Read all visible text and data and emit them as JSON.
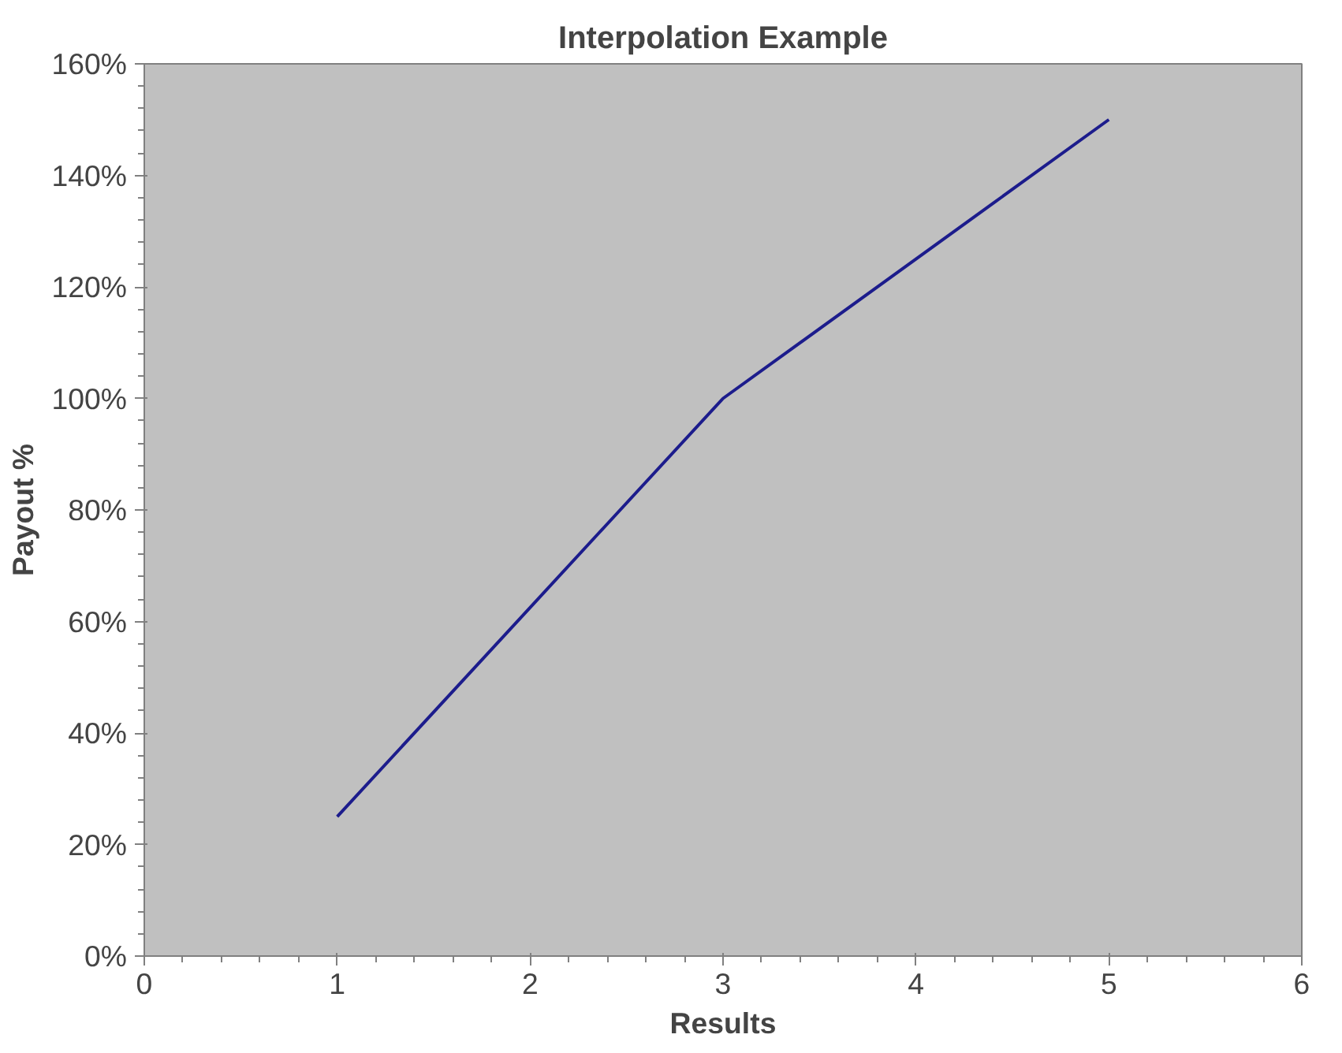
{
  "chart_data": {
    "type": "line",
    "title": "Interpolation Example",
    "xlabel": "Results",
    "ylabel": "Payout %",
    "x": [
      1,
      3,
      5
    ],
    "series": [
      {
        "color": "#1c1c8c",
        "values": [
          25,
          100,
          150
        ]
      }
    ],
    "xlim": [
      0,
      6
    ],
    "xticks": [
      0,
      1,
      2,
      3,
      4,
      5,
      6
    ],
    "ylim": [
      0,
      160
    ],
    "yticks": [
      {
        "value": 0,
        "label": "0%"
      },
      {
        "value": 20,
        "label": "20%"
      },
      {
        "value": 40,
        "label": "40%"
      },
      {
        "value": 60,
        "label": "60%"
      },
      {
        "value": 80,
        "label": "80%"
      },
      {
        "value": 100,
        "label": "100%"
      },
      {
        "value": 120,
        "label": "120%"
      },
      {
        "value": 140,
        "label": "140%"
      },
      {
        "value": 160,
        "label": "160%"
      }
    ],
    "grid": false,
    "marker": "none",
    "line_style": "solid"
  }
}
